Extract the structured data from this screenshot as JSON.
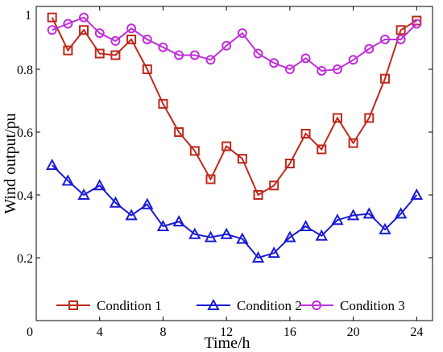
{
  "chart_data": {
    "type": "line",
    "xlabel": "Time/h",
    "ylabel": "Wind output/pu",
    "xlim": [
      0,
      25
    ],
    "ylim": [
      0,
      1
    ],
    "x_ticks": [
      0,
      4,
      8,
      12,
      16,
      20,
      24
    ],
    "y_ticks": [
      0.2,
      0.4,
      0.6,
      0.8
    ],
    "y_tick_labels": [
      "0.2",
      "0.4",
      "0.6",
      "0.8"
    ],
    "y_top_label": "1",
    "x": [
      1,
      2,
      3,
      4,
      5,
      6,
      7,
      8,
      9,
      10,
      11,
      12,
      13,
      14,
      15,
      16,
      17,
      18,
      19,
      20,
      21,
      22,
      23,
      24
    ],
    "grid": false,
    "legend_position": "bottom",
    "series": [
      {
        "name": "Condition 1",
        "color": "#c0281c",
        "marker": "square",
        "values": [
          0.965,
          0.86,
          0.925,
          0.85,
          0.845,
          0.895,
          0.8,
          0.69,
          0.6,
          0.54,
          0.45,
          0.555,
          0.515,
          0.4,
          0.43,
          0.5,
          0.595,
          0.545,
          0.645,
          0.565,
          0.645,
          0.77,
          0.925,
          0.955
        ]
      },
      {
        "name": "Condition 2",
        "color": "#1a1ad6",
        "marker": "triangle",
        "values": [
          0.495,
          0.445,
          0.4,
          0.43,
          0.375,
          0.335,
          0.37,
          0.3,
          0.315,
          0.275,
          0.265,
          0.275,
          0.26,
          0.2,
          0.215,
          0.265,
          0.3,
          0.27,
          0.32,
          0.335,
          0.34,
          0.29,
          0.34,
          0.4
        ]
      },
      {
        "name": "Condition 3",
        "color": "#c030d8",
        "marker": "circle",
        "values": [
          0.925,
          0.945,
          0.965,
          0.915,
          0.89,
          0.93,
          0.895,
          0.87,
          0.845,
          0.845,
          0.83,
          0.875,
          0.915,
          0.85,
          0.82,
          0.8,
          0.835,
          0.795,
          0.8,
          0.83,
          0.865,
          0.895,
          0.895,
          0.945
        ]
      }
    ]
  }
}
